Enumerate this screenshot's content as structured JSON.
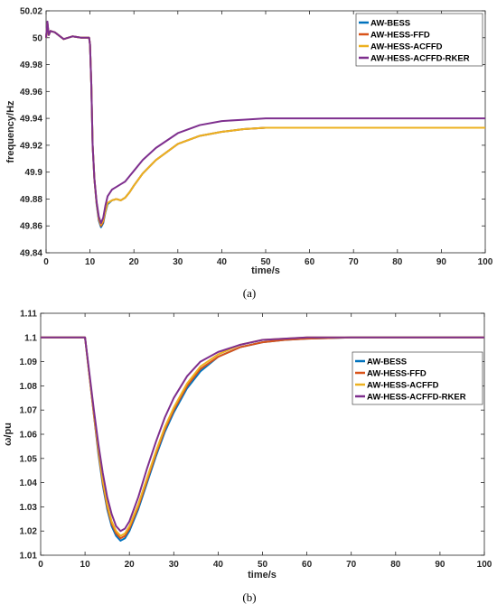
{
  "chart_data": [
    {
      "type": "line",
      "caption": "(a)",
      "xlabel": "time/s",
      "ylabel": "frequency/Hz",
      "xlim": [
        0,
        100
      ],
      "ylim": [
        49.84,
        50.02
      ],
      "xticks": [
        "0",
        "10",
        "20",
        "30",
        "40",
        "50",
        "60",
        "70",
        "80",
        "90",
        "100"
      ],
      "yticks": [
        "49.84",
        "49.86",
        "49.88",
        "49.9",
        "49.92",
        "49.94",
        "49.96",
        "49.98",
        "50",
        "50.02"
      ],
      "legend_position": "top-right",
      "series": [
        {
          "name": "AW-BESS",
          "color": "#0072BD",
          "x": [
            0,
            0.3,
            0.6,
            1,
            2,
            4,
            6,
            8,
            9.8,
            10,
            10.3,
            10.6,
            11,
            11.5,
            12,
            12.5,
            13,
            13.5,
            14,
            15,
            16,
            17,
            18,
            19,
            20,
            22,
            25,
            30,
            35,
            40,
            45,
            50,
            60,
            70,
            80,
            90,
            100
          ],
          "y": [
            50,
            50.011,
            50.002,
            50.005,
            50.004,
            49.999,
            50.001,
            50.0,
            50.0,
            49.995,
            49.965,
            49.92,
            49.895,
            49.876,
            49.864,
            49.859,
            49.862,
            49.87,
            49.876,
            49.879,
            49.88,
            49.879,
            49.881,
            49.885,
            49.89,
            49.899,
            49.909,
            49.921,
            49.927,
            49.93,
            49.932,
            49.933,
            49.933,
            49.933,
            49.933,
            49.933,
            49.933
          ]
        },
        {
          "name": "AW-HESS-FFD",
          "color": "#D95319",
          "x": [
            0,
            0.3,
            0.6,
            1,
            2,
            4,
            6,
            8,
            9.8,
            10,
            10.3,
            10.6,
            11,
            11.5,
            12,
            12.5,
            13,
            13.5,
            14,
            15,
            16,
            17,
            18,
            19,
            20,
            22,
            25,
            30,
            35,
            40,
            45,
            50,
            60,
            70,
            80,
            90,
            100
          ],
          "y": [
            50,
            50.011,
            50.002,
            50.005,
            50.004,
            49.999,
            50.001,
            50.0,
            50.0,
            49.995,
            49.965,
            49.92,
            49.895,
            49.877,
            49.865,
            49.86,
            49.863,
            49.871,
            49.877,
            49.879,
            49.88,
            49.879,
            49.881,
            49.885,
            49.89,
            49.899,
            49.909,
            49.921,
            49.927,
            49.93,
            49.932,
            49.933,
            49.933,
            49.933,
            49.933,
            49.933,
            49.933
          ]
        },
        {
          "name": "AW-HESS-ACFFD",
          "color": "#EDB120",
          "x": [
            0,
            0.3,
            0.6,
            1,
            2,
            4,
            6,
            8,
            9.8,
            10,
            10.3,
            10.6,
            11,
            11.5,
            12,
            12.5,
            13,
            13.5,
            14,
            15,
            16,
            17,
            18,
            19,
            20,
            22,
            25,
            30,
            35,
            40,
            45,
            50,
            60,
            70,
            80,
            90,
            100
          ],
          "y": [
            50,
            50.011,
            50.002,
            50.005,
            50.004,
            49.999,
            50.001,
            50.0,
            50.0,
            49.995,
            49.965,
            49.92,
            49.895,
            49.877,
            49.866,
            49.861,
            49.864,
            49.871,
            49.877,
            49.879,
            49.88,
            49.879,
            49.881,
            49.885,
            49.89,
            49.899,
            49.909,
            49.921,
            49.927,
            49.93,
            49.932,
            49.933,
            49.933,
            49.933,
            49.933,
            49.933,
            49.933
          ]
        },
        {
          "name": "AW-HESS-ACFFD-RKER",
          "color": "#7E2F8E",
          "x": [
            0,
            0.3,
            0.6,
            1,
            2,
            4,
            6,
            8,
            9.8,
            10,
            10.3,
            10.6,
            11,
            11.5,
            12,
            12.5,
            13,
            13.5,
            14,
            15,
            16,
            17,
            18,
            19,
            20,
            22,
            25,
            30,
            35,
            40,
            45,
            50,
            60,
            70,
            80,
            90,
            100
          ],
          "y": [
            50,
            50.012,
            50.002,
            50.005,
            50.004,
            49.999,
            50.001,
            50.0,
            50.0,
            49.995,
            49.965,
            49.92,
            49.895,
            49.878,
            49.867,
            49.862,
            49.866,
            49.875,
            49.882,
            49.887,
            49.889,
            49.891,
            49.893,
            49.897,
            49.901,
            49.909,
            49.918,
            49.929,
            49.935,
            49.938,
            49.939,
            49.94,
            49.94,
            49.94,
            49.94,
            49.94,
            49.94
          ]
        }
      ]
    },
    {
      "type": "line",
      "caption": "(b)",
      "xlabel": "time/s",
      "ylabel": "ω/pu",
      "xlim": [
        0,
        100
      ],
      "ylim": [
        1.01,
        1.11
      ],
      "xticks": [
        "0",
        "10",
        "20",
        "30",
        "40",
        "50",
        "60",
        "70",
        "80",
        "90",
        "100"
      ],
      "yticks": [
        "1.01",
        "1.02",
        "1.03",
        "1.04",
        "1.05",
        "1.06",
        "1.07",
        "1.08",
        "1.09",
        "1.1",
        "1.11"
      ],
      "legend_position": "middle-right",
      "series": [
        {
          "name": "AW-BESS",
          "color": "#0072BD",
          "x": [
            0,
            5,
            10,
            11,
            12,
            13,
            14,
            15,
            16,
            17,
            18,
            19,
            20,
            22,
            24,
            26,
            28,
            30,
            33,
            36,
            40,
            45,
            50,
            55,
            60,
            70,
            80,
            90,
            100
          ],
          "y": [
            1.1,
            1.1,
            1.1,
            1.084,
            1.068,
            1.052,
            1.039,
            1.029,
            1.022,
            1.018,
            1.016,
            1.017,
            1.02,
            1.029,
            1.04,
            1.051,
            1.061,
            1.069,
            1.079,
            1.086,
            1.092,
            1.096,
            1.098,
            1.099,
            1.0995,
            1.1,
            1.1,
            1.1,
            1.1
          ]
        },
        {
          "name": "AW-HESS-FFD",
          "color": "#D95319",
          "x": [
            0,
            5,
            10,
            11,
            12,
            13,
            14,
            15,
            16,
            17,
            18,
            19,
            20,
            22,
            24,
            26,
            28,
            30,
            33,
            36,
            40,
            45,
            50,
            55,
            60,
            70,
            80,
            90,
            100
          ],
          "y": [
            1.1,
            1.1,
            1.1,
            1.084,
            1.068,
            1.053,
            1.04,
            1.03,
            1.023,
            1.019,
            1.017,
            1.018,
            1.021,
            1.03,
            1.041,
            1.052,
            1.062,
            1.07,
            1.08,
            1.087,
            1.092,
            1.096,
            1.098,
            1.099,
            1.0995,
            1.1,
            1.1,
            1.1,
            1.1
          ]
        },
        {
          "name": "AW-HESS-ACFFD",
          "color": "#EDB120",
          "x": [
            0,
            5,
            10,
            11,
            12,
            13,
            14,
            15,
            16,
            17,
            18,
            19,
            20,
            22,
            24,
            26,
            28,
            30,
            33,
            36,
            40,
            45,
            50,
            55,
            60,
            70,
            80,
            90,
            100
          ],
          "y": [
            1.1,
            1.1,
            1.1,
            1.084,
            1.069,
            1.054,
            1.041,
            1.031,
            1.024,
            1.02,
            1.018,
            1.019,
            1.022,
            1.031,
            1.042,
            1.053,
            1.063,
            1.071,
            1.081,
            1.088,
            1.093,
            1.097,
            1.099,
            1.0995,
            1.1,
            1.1,
            1.1,
            1.1,
            1.1
          ]
        },
        {
          "name": "AW-HESS-ACFFD-RKER",
          "color": "#7E2F8E",
          "x": [
            0,
            5,
            10,
            11,
            12,
            13,
            14,
            15,
            16,
            17,
            18,
            19,
            20,
            22,
            24,
            26,
            28,
            30,
            33,
            36,
            40,
            45,
            50,
            55,
            60,
            70,
            80,
            90,
            100
          ],
          "y": [
            1.1,
            1.1,
            1.1,
            1.085,
            1.07,
            1.056,
            1.044,
            1.034,
            1.027,
            1.022,
            1.02,
            1.021,
            1.024,
            1.034,
            1.046,
            1.057,
            1.067,
            1.075,
            1.084,
            1.09,
            1.094,
            1.097,
            1.099,
            1.0995,
            1.1,
            1.1,
            1.1,
            1.1,
            1.1
          ]
        }
      ]
    }
  ]
}
